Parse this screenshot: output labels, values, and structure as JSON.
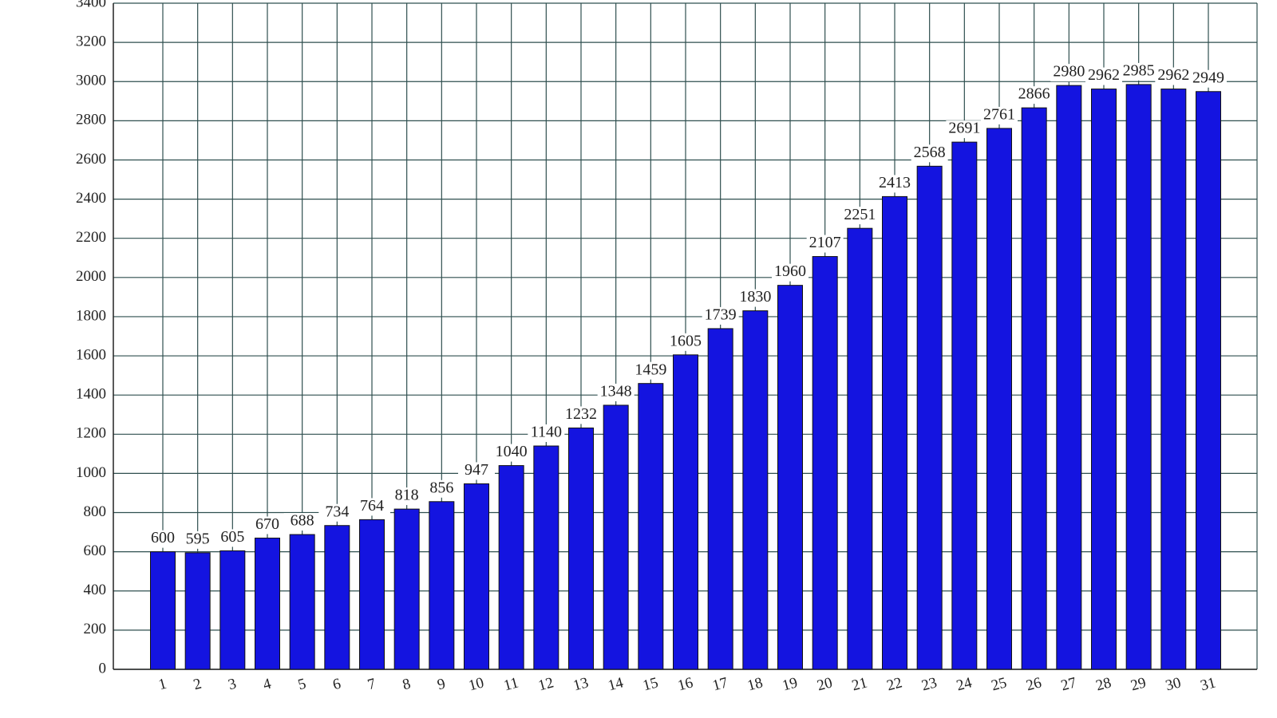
{
  "chart_data": {
    "type": "bar",
    "categories": [
      "1",
      "2",
      "3",
      "4",
      "5",
      "6",
      "7",
      "8",
      "9",
      "10",
      "11",
      "12",
      "13",
      "14",
      "15",
      "16",
      "17",
      "18",
      "19",
      "20",
      "21",
      "22",
      "23",
      "24",
      "25",
      "26",
      "27",
      "28",
      "29",
      "30",
      "31"
    ],
    "values": [
      600,
      595,
      605,
      670,
      688,
      734,
      764,
      818,
      856,
      947,
      1040,
      1140,
      1232,
      1348,
      1459,
      1605,
      1739,
      1830,
      1960,
      2107,
      2251,
      2413,
      2568,
      2691,
      2761,
      2866,
      2980,
      2962,
      2985,
      2962,
      2949
    ],
    "color": "#1414e0",
    "ylim": [
      0,
      3400
    ],
    "yticks": [
      0,
      200,
      400,
      600,
      800,
      1000,
      1200,
      1400,
      1600,
      1800,
      2000,
      2200,
      2400,
      2600,
      2800,
      3000,
      3200,
      3400
    ],
    "grid": true
  }
}
